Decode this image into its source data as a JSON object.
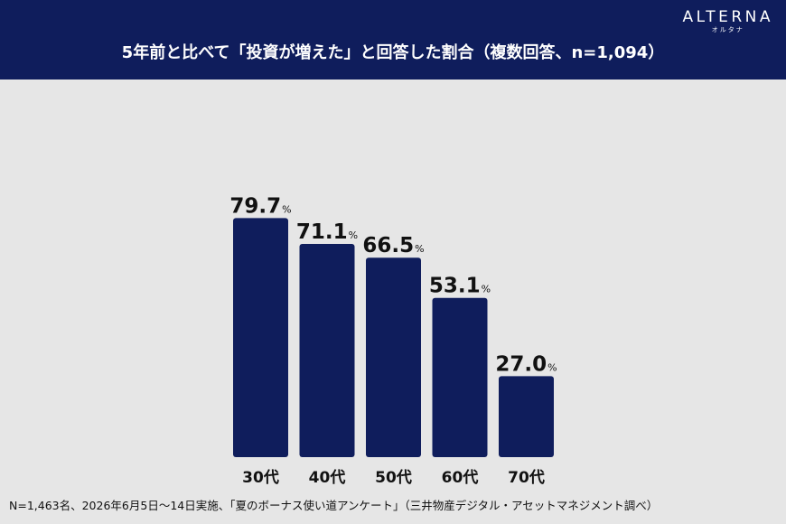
{
  "header": {
    "brand": "ALTERNA",
    "brand_sub": "オルタナ",
    "title": "5年前と比べて「投資が増えた」と回答した割合（複数回答、n=1,094）"
  },
  "footnote": "N=1,463名、2026年6月5日～14日実施、「夏のボーナス使い道アンケート」（三井物産デジタル・アセットマネジメント調べ）",
  "colors": {
    "bar": "#0f1d5c",
    "header": "#0f1d5c",
    "background": "#e6e6e6"
  },
  "chart_data": {
    "type": "bar",
    "categories": [
      "30代",
      "40代",
      "50代",
      "60代",
      "70代"
    ],
    "values": [
      79.7,
      71.1,
      66.5,
      53.1,
      27.0
    ],
    "value_labels": [
      "79.7",
      "71.1",
      "66.5",
      "53.1",
      "27.0"
    ],
    "unit": "%",
    "ylim": [
      0,
      100
    ],
    "grid": false,
    "legend": "none"
  }
}
